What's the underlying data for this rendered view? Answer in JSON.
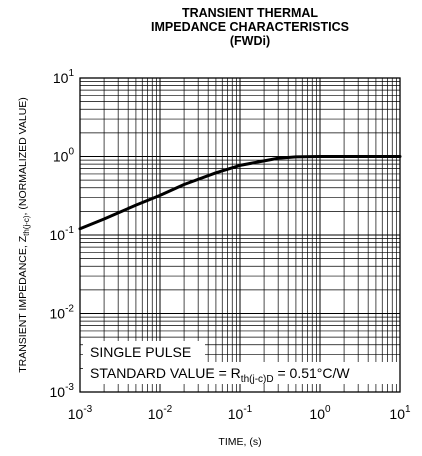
{
  "chart_data": {
    "type": "line",
    "title_lines": [
      "TRANSIENT THERMAL",
      "IMPEDANCE CHARACTERISTICS",
      "(FWDi)"
    ],
    "xlabel": "TIME, (s)",
    "ylabel": {
      "prefix": "TRANSIENT IMPEDANCE, Z",
      "sub": "th(j-c)",
      "suffix": ", (NORMALIZED VALUE)"
    },
    "x_scale": "log",
    "y_scale": "log",
    "xlim": [
      0.001,
      10
    ],
    "ylim": [
      0.001,
      10
    ],
    "grid": true,
    "x_ticks": [
      {
        "base": "10",
        "exp": "-3"
      },
      {
        "base": "10",
        "exp": "-2"
      },
      {
        "base": "10",
        "exp": "-1"
      },
      {
        "base": "10",
        "exp": "0"
      },
      {
        "base": "10",
        "exp": "1"
      }
    ],
    "y_ticks": [
      {
        "base": "10",
        "exp": "-3"
      },
      {
        "base": "10",
        "exp": "-2"
      },
      {
        "base": "10",
        "exp": "-1"
      },
      {
        "base": "10",
        "exp": "0"
      },
      {
        "base": "10",
        "exp": "1"
      }
    ],
    "series": [
      {
        "color": "#000000",
        "x": [
          0.001,
          0.002,
          0.005,
          0.01,
          0.02,
          0.05,
          0.1,
          0.2,
          0.3,
          0.5,
          1,
          2,
          5,
          10
        ],
        "y": [
          0.12,
          0.16,
          0.24,
          0.32,
          0.44,
          0.62,
          0.77,
          0.88,
          0.95,
          0.99,
          1.0,
          1.0,
          1.0,
          1.0
        ]
      }
    ],
    "annotations": {
      "line1": "SINGLE PULSE",
      "line2_prefix": "STANDARD VALUE = R",
      "line2_sub": "th(j-c)D",
      "line2_suffix": " = 0.51°C/W"
    }
  }
}
